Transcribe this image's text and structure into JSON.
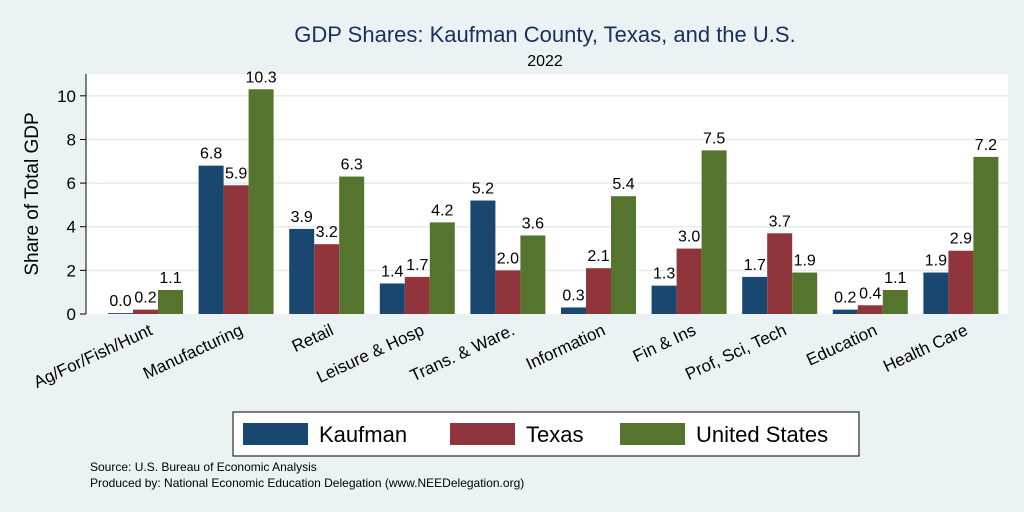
{
  "chart_data": {
    "type": "bar",
    "title": "GDP Shares: Kaufman County, Texas, and the U.S.",
    "subtitle": "2022",
    "xlabel": "",
    "ylabel": "Share of Total GDP",
    "ylim": [
      0,
      11
    ],
    "yticks": [
      0,
      2,
      4,
      6,
      8,
      10
    ],
    "grid": true,
    "legend_position": "bottom",
    "categories": [
      "Ag/For/Fish/Hunt",
      "Manufacturing",
      "Retail",
      "Leisure & Hosp",
      "Trans. & Ware.",
      "Information",
      "Fin & Ins",
      "Prof, Sci, Tech",
      "Education",
      "Health Care"
    ],
    "series": [
      {
        "name": "Kaufman",
        "color": "#1a476f",
        "values": [
          0.04,
          6.8,
          3.9,
          1.4,
          5.2,
          0.3,
          1.3,
          1.7,
          0.2,
          1.9
        ],
        "labels": [
          "0.0",
          "6.8",
          "3.9",
          "1.4",
          "5.2",
          "0.3",
          "1.3",
          "1.7",
          "0.2",
          "1.9"
        ]
      },
      {
        "name": "Texas",
        "color": "#90353b",
        "values": [
          0.2,
          5.9,
          3.2,
          1.7,
          2.0,
          2.1,
          3.0,
          3.7,
          0.4,
          2.9
        ],
        "labels": [
          "0.2",
          "5.9",
          "3.2",
          "1.7",
          "2.0",
          "2.1",
          "3.0",
          "3.7",
          "0.4",
          "2.9"
        ]
      },
      {
        "name": "United States",
        "color": "#55752f",
        "values": [
          1.1,
          10.3,
          6.3,
          4.2,
          3.6,
          5.4,
          7.5,
          1.9,
          1.1,
          7.2
        ],
        "labels": [
          "1.1",
          "10.3",
          "6.3",
          "4.2",
          "3.6",
          "5.4",
          "7.5",
          "1.9",
          "1.1",
          "7.2"
        ]
      }
    ]
  },
  "source": {
    "line1": "Source: U.S. Bureau of Economic Analysis",
    "line2": "Produced by: National Economic Education Delegation (www.NEEDelegation.org)"
  }
}
